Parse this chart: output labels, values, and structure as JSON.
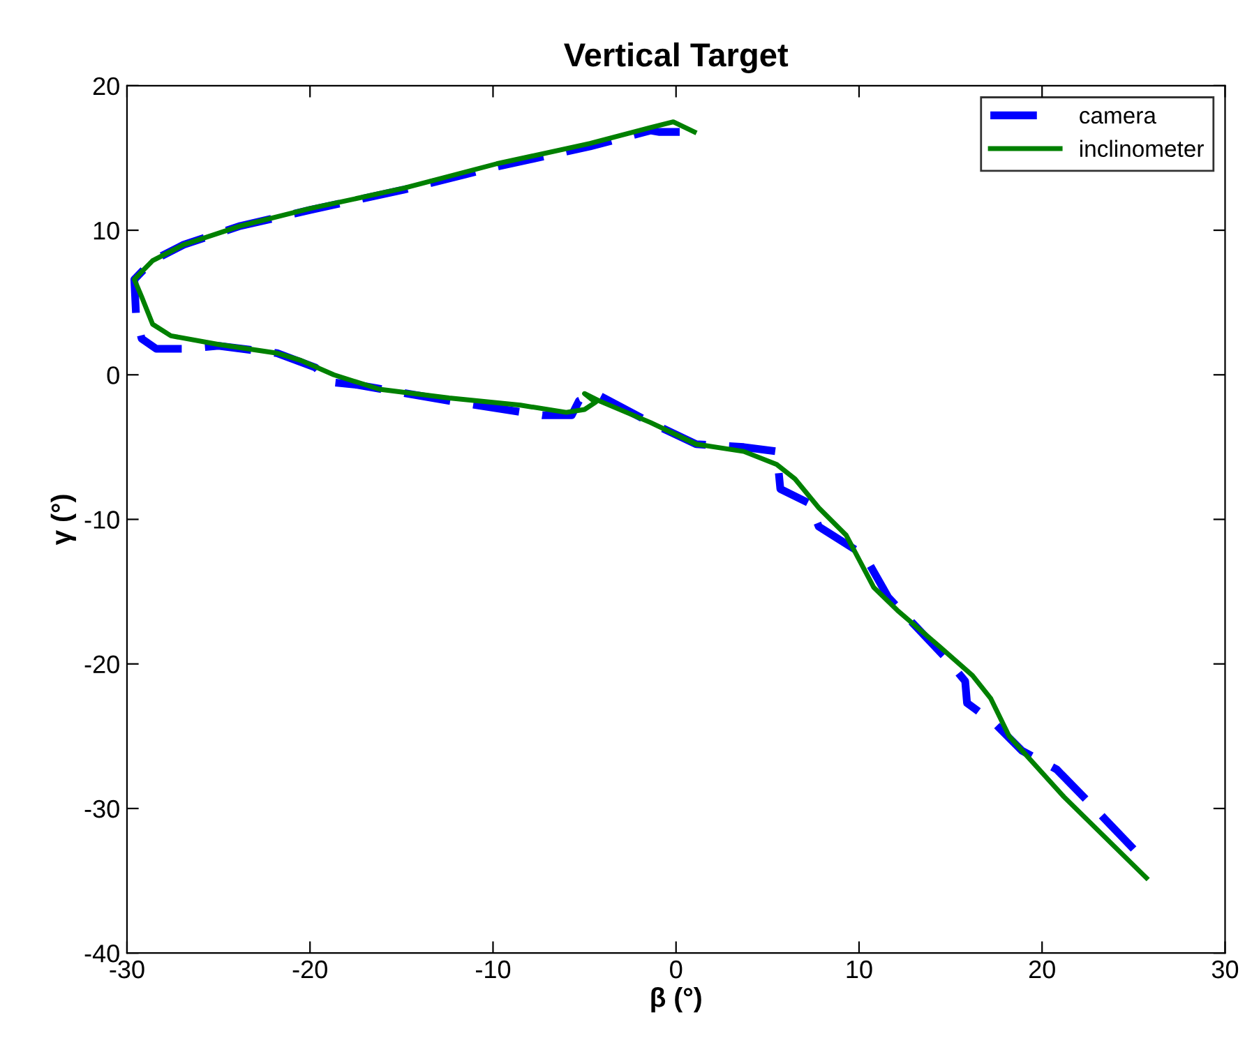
{
  "chart_data": {
    "type": "line",
    "title": "Vertical Target",
    "xlabel": "β (°)",
    "ylabel": "γ (°)",
    "xlim": [
      -30,
      30
    ],
    "ylim": [
      -40,
      20
    ],
    "xticks": [
      -30,
      -20,
      -10,
      0,
      10,
      20,
      30
    ],
    "yticks": [
      -40,
      -30,
      -20,
      -10,
      0,
      10,
      20
    ],
    "grid": false,
    "legend": "top right",
    "series": [
      {
        "name": "camera",
        "color": "#0000ff",
        "line_style": "dashed",
        "x": [
          0.2,
          -0.9,
          -1.4,
          -4.7,
          -9.8,
          -14.9,
          -20.0,
          -23.8,
          -26.9,
          -28.6,
          -29.6,
          -29.5,
          -29.2,
          -28.4,
          -26.9,
          -25.0,
          -21.8,
          -19.7,
          -18.9,
          -17.4,
          -12.4,
          -7.3,
          -5.7,
          -5.3,
          -4.4,
          -1.4,
          1.1,
          3.7,
          5.5,
          5.7,
          7.3,
          7.8,
          10.3,
          11.6,
          14.9,
          15.8,
          15.9,
          17.4,
          18.9,
          20.8,
          22.5,
          25.0
        ],
        "values": [
          16.8,
          16.8,
          16.9,
          15.8,
          14.4,
          12.8,
          11.4,
          10.3,
          9.0,
          7.9,
          6.6,
          4.0,
          2.5,
          1.8,
          1.8,
          2.0,
          1.5,
          0.5,
          -0.5,
          -0.7,
          -1.8,
          -2.8,
          -2.8,
          -1.8,
          -1.3,
          -3.3,
          -4.8,
          -5.0,
          -5.3,
          -7.9,
          -8.9,
          -10.5,
          -12.5,
          -15.4,
          -19.8,
          -21.2,
          -22.7,
          -24.1,
          -26.0,
          -27.3,
          -29.5,
          -32.8
        ]
      },
      {
        "name": "inclinometer",
        "color": "#008000",
        "line_style": "solid",
        "x": [
          1.0,
          -0.15,
          -1.4,
          -4.7,
          -9.8,
          -14.9,
          -20.0,
          -23.8,
          -26.9,
          -28.6,
          -29.6,
          -29.2,
          -28.6,
          -27.6,
          -25.0,
          -21.8,
          -20.5,
          -18.7,
          -16.2,
          -12.4,
          -8.5,
          -6.0,
          -5.0,
          -4.4,
          -5.0,
          -4.2,
          -1.4,
          1.1,
          3.7,
          5.5,
          6.5,
          7.8,
          9.3,
          10.8,
          12.1,
          14.4,
          16.2,
          17.2,
          18.2,
          21.2,
          25.7
        ],
        "values": [
          16.8,
          17.5,
          17.1,
          16.0,
          14.6,
          12.9,
          11.5,
          10.3,
          9.0,
          7.9,
          6.6,
          5.4,
          3.5,
          2.7,
          2.1,
          1.5,
          1.0,
          0.0,
          -1.0,
          -1.6,
          -2.1,
          -2.6,
          -2.4,
          -1.9,
          -1.3,
          -1.8,
          -3.3,
          -4.8,
          -5.3,
          -6.2,
          -7.2,
          -9.2,
          -11.1,
          -14.7,
          -16.3,
          -18.8,
          -20.8,
          -22.4,
          -25.0,
          -29.2,
          -34.8
        ]
      }
    ]
  }
}
